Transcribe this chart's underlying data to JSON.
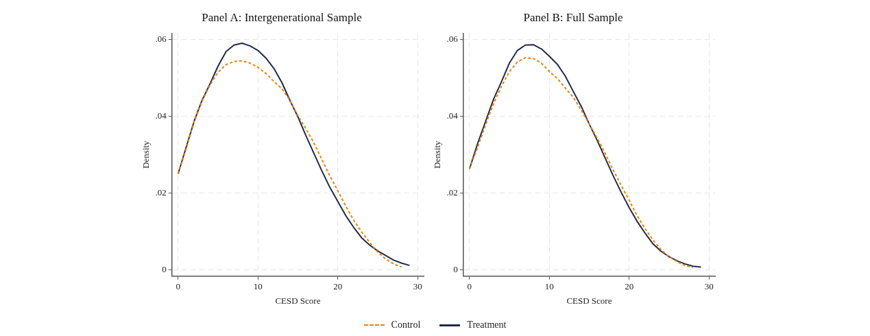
{
  "chart_data": [
    {
      "type": "line",
      "title": "Panel A: Intergenerational Sample",
      "xlabel": "CESD Score",
      "ylabel": "Density",
      "x": [
        0,
        1,
        2,
        3,
        4,
        5,
        6,
        7,
        8,
        9,
        10,
        11,
        12,
        13,
        14,
        15,
        16,
        17,
        18,
        19,
        20,
        21,
        22,
        23,
        24,
        25,
        26,
        27,
        28,
        29
      ],
      "series": [
        {
          "name": "Control",
          "color": "#e8820c",
          "line_style": "dashed",
          "x": [
            0,
            1,
            2,
            3,
            4,
            5,
            6,
            7,
            8,
            9,
            10,
            11,
            12,
            13,
            14,
            15,
            16,
            17,
            18,
            19,
            20,
            21,
            22,
            23,
            24,
            25,
            26,
            27,
            28
          ],
          "values": [
            0.025,
            0.0315,
            0.0385,
            0.044,
            0.0482,
            0.0515,
            0.0535,
            0.0543,
            0.0545,
            0.0539,
            0.0528,
            0.0512,
            0.0491,
            0.0472,
            0.0442,
            0.0402,
            0.0368,
            0.0331,
            0.0288,
            0.0245,
            0.0206,
            0.0166,
            0.0129,
            0.0098,
            0.0071,
            0.0046,
            0.0028,
            0.0015,
            0.0007
          ]
        },
        {
          "name": "Treatment",
          "color": "#1f2a4e",
          "line_style": "solid",
          "values": [
            0.025,
            0.0319,
            0.0387,
            0.0442,
            0.0485,
            0.0531,
            0.0569,
            0.0586,
            0.0591,
            0.0584,
            0.0572,
            0.0552,
            0.0525,
            0.0488,
            0.0442,
            0.0399,
            0.035,
            0.0304,
            0.0258,
            0.0215,
            0.0178,
            0.0141,
            0.011,
            0.0083,
            0.0064,
            0.0049,
            0.0037,
            0.0025,
            0.0017,
            0.0011
          ]
        }
      ],
      "xlim": [
        -0.77,
        30.76
      ],
      "xticks": [
        0,
        10,
        20,
        30
      ],
      "ylim": [
        -0.0017,
        0.0617
      ],
      "yticks": [
        {
          "value": 0,
          "label": "0"
        },
        {
          "value": 0.02,
          "label": ".02"
        },
        {
          "value": 0.04,
          "label": ".04"
        },
        {
          "value": 0.06,
          "label": ".06"
        }
      ],
      "grid": true,
      "legend": "bottom",
      "marker": "none"
    },
    {
      "type": "line",
      "title": "Panel B: Full Sample",
      "xlabel": "CESD Score",
      "ylabel": "Density",
      "x": [
        0,
        1,
        2,
        3,
        4,
        5,
        6,
        7,
        8,
        9,
        10,
        11,
        12,
        13,
        14,
        15,
        16,
        17,
        18,
        19,
        20,
        21,
        22,
        23,
        24,
        25,
        26,
        27,
        28,
        29
      ],
      "series": [
        {
          "color": "#e8820c",
          "line_style": "dashed",
          "x": [
            0,
            1,
            2,
            3,
            4,
            5,
            6,
            7,
            8,
            9,
            10,
            11,
            12,
            13,
            14,
            15,
            16,
            17,
            18,
            19,
            20,
            21,
            22,
            23,
            24,
            25,
            26,
            27,
            28
          ],
          "values": [
            0.0263,
            0.0318,
            0.0377,
            0.0432,
            0.0478,
            0.0517,
            0.0542,
            0.0553,
            0.0551,
            0.0539,
            0.0517,
            0.0499,
            0.0474,
            0.045,
            0.0416,
            0.038,
            0.0343,
            0.0303,
            0.026,
            0.022,
            0.0181,
            0.0141,
            0.0107,
            0.0077,
            0.0052,
            0.0034,
            0.0021,
            0.0011,
            0.0006
          ]
        },
        {
          "color": "#1f2a4e",
          "line_style": "solid",
          "values": [
            0.0263,
            0.0328,
            0.0386,
            0.0444,
            0.049,
            0.0539,
            0.0572,
            0.0586,
            0.0587,
            0.0576,
            0.0557,
            0.0536,
            0.0505,
            0.0465,
            0.0426,
            0.038,
            0.0337,
            0.0291,
            0.0245,
            0.0202,
            0.0162,
            0.0126,
            0.0095,
            0.0067,
            0.0048,
            0.0034,
            0.0023,
            0.0015,
            0.0009,
            0.0007
          ]
        }
      ],
      "xlim": [
        -0.77,
        30.76
      ],
      "xticks": [
        0,
        10,
        20,
        30
      ],
      "ylim": [
        -0.0017,
        0.0617
      ],
      "yticks": [
        {
          "value": 0,
          "label": "0"
        },
        {
          "value": 0.02,
          "label": ".02"
        },
        {
          "value": 0.04,
          "label": ".04"
        },
        {
          "value": 0.06,
          "label": ".06"
        }
      ],
      "grid": true,
      "marker": "none"
    }
  ]
}
